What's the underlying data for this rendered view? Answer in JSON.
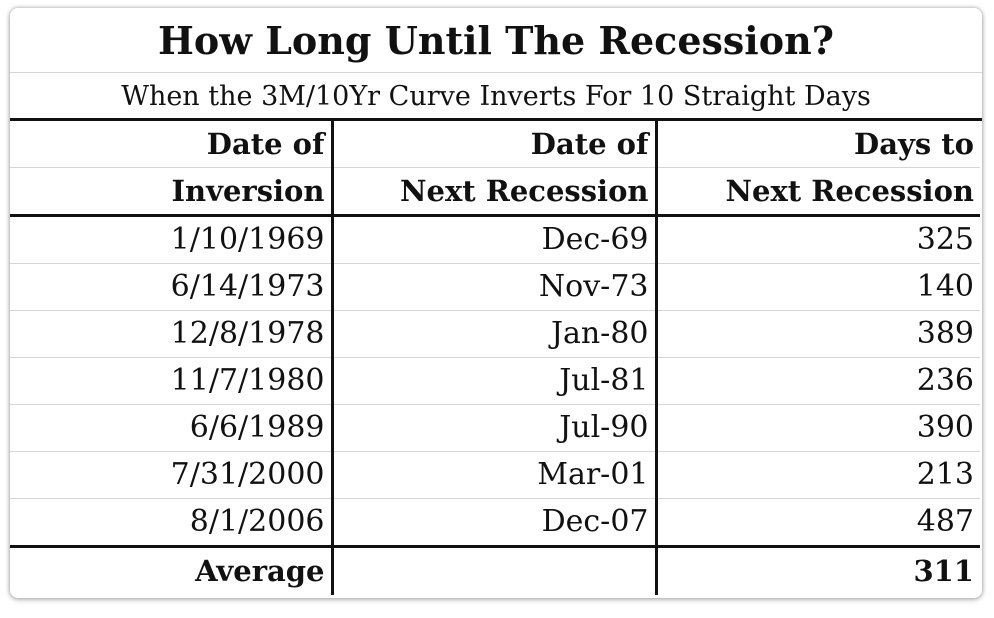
{
  "title": "How Long Until The Recession?",
  "subtitle": "When the 3M/10Yr Curve Inverts For 10 Straight Days",
  "columns": [
    {
      "line1": "Date of",
      "line2": "Inversion"
    },
    {
      "line1": "Date of",
      "line2": "Next Recession"
    },
    {
      "line1": "Days to",
      "line2": "Next Recession"
    }
  ],
  "rows": [
    {
      "inversion": "1/10/1969",
      "recession": "Dec-69",
      "days": "325"
    },
    {
      "inversion": "6/14/1973",
      "recession": "Nov-73",
      "days": "140"
    },
    {
      "inversion": "12/8/1978",
      "recession": "Jan-80",
      "days": "389"
    },
    {
      "inversion": "11/7/1980",
      "recession": "Jul-81",
      "days": "236"
    },
    {
      "inversion": "6/6/1989",
      "recession": "Jul-90",
      "days": "390"
    },
    {
      "inversion": "7/31/2000",
      "recession": "Mar-01",
      "days": "213"
    },
    {
      "inversion": "8/1/2006",
      "recession": "Dec-07",
      "days": "487"
    }
  ],
  "average": {
    "label": "Average",
    "recession": "",
    "days": "311"
  }
}
